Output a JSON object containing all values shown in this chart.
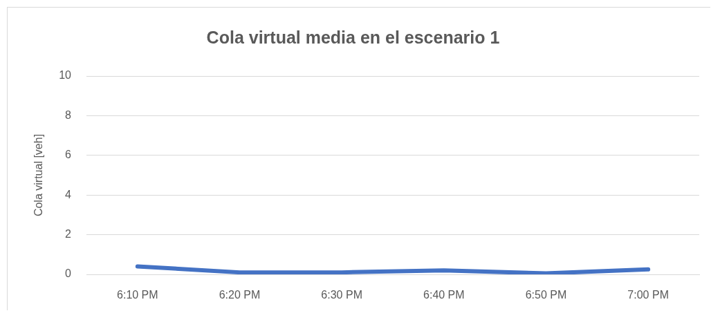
{
  "chart_data": {
    "type": "line",
    "title": "Cola virtual media en el escenario 1",
    "ylabel": "Cola virtual [veh]",
    "categories": [
      "6:10 PM",
      "6:20 PM",
      "6:30 PM",
      "6:40 PM",
      "6:50 PM",
      "7:00 PM"
    ],
    "series": [
      {
        "color": "#4472c4",
        "values": [
          0.4,
          0.1,
          0.1,
          0.2,
          0.05,
          0.25
        ]
      }
    ],
    "ylim": [
      0,
      10
    ],
    "yticks": [
      0,
      2,
      4,
      6,
      8,
      10
    ],
    "grid": "y",
    "legend": false,
    "marker": "none",
    "line_style": "solid"
  }
}
